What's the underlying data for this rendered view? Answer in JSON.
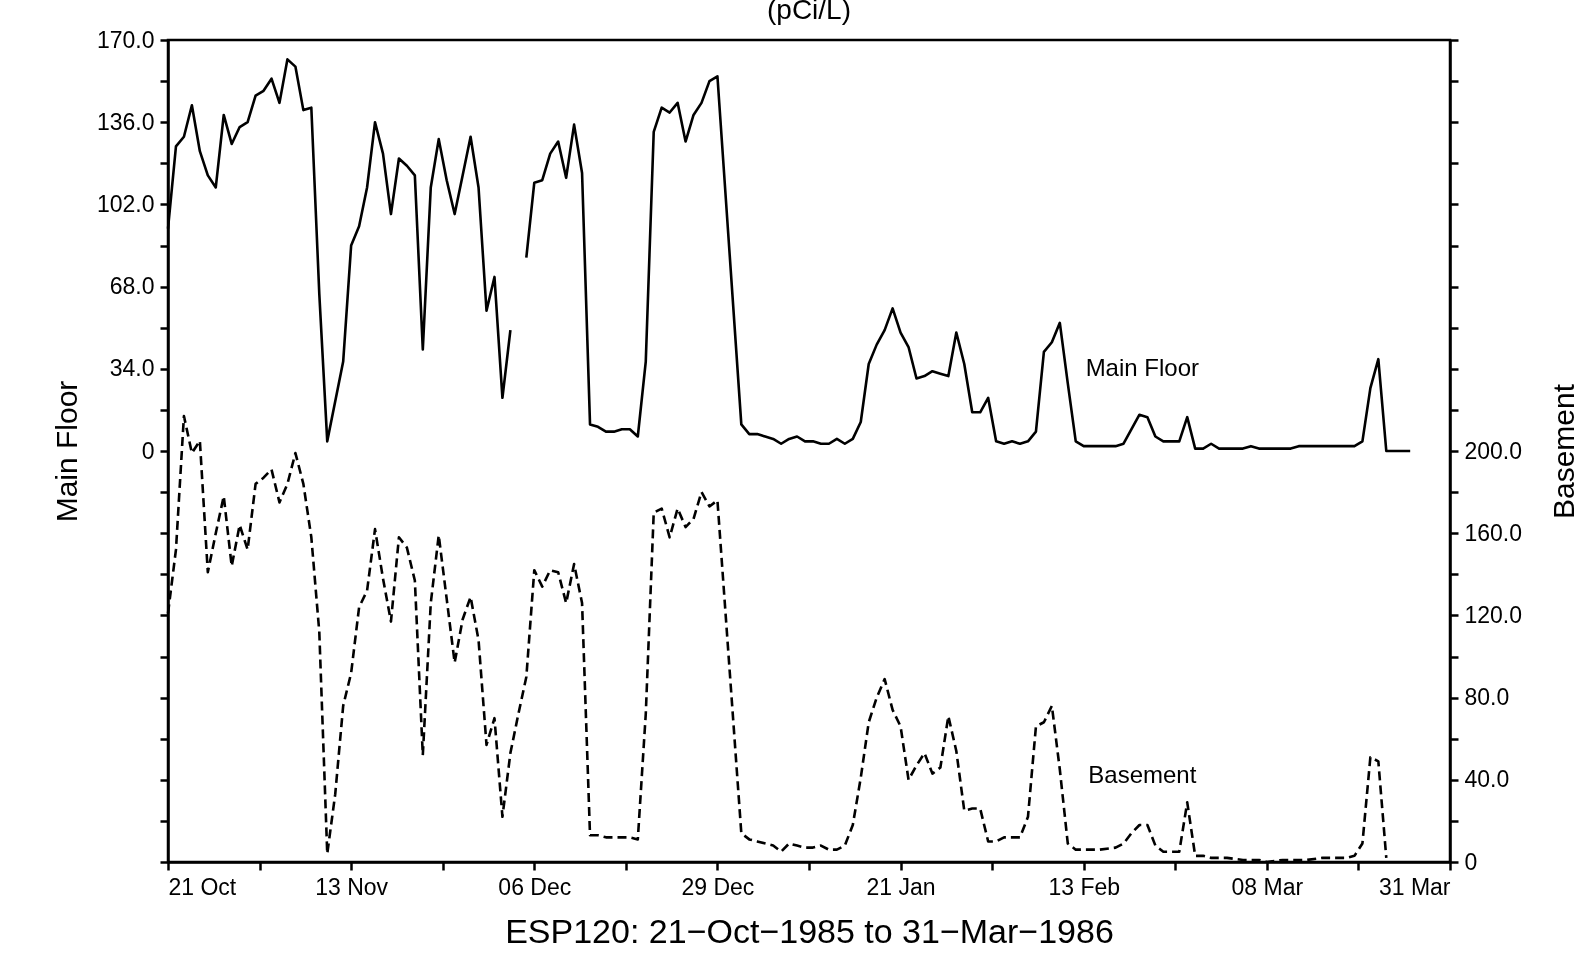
{
  "chart_data": {
    "type": "line",
    "title": "(pCi/L)",
    "xlabel": "ESP120:  21−Oct−1985 to 31−Mar−1986",
    "ylabel": "Main Floor",
    "y2label": "Basement",
    "xlim": [
      "1985-10-21",
      "1986-03-31"
    ],
    "xticks": [
      {
        "value": "1985-10-21",
        "label": "21 Oct"
      },
      {
        "value": "1985-11-01T12:00",
        "label": null
      },
      {
        "value": "1985-11-13",
        "label": "13 Nov"
      },
      {
        "value": "1985-11-24T12:00",
        "label": null
      },
      {
        "value": "1985-12-06",
        "label": "06 Dec"
      },
      {
        "value": "1985-12-17T12:00",
        "label": null
      },
      {
        "value": "1985-12-29",
        "label": "29 Dec"
      },
      {
        "value": "1986-01-09T12:00",
        "label": null
      },
      {
        "value": "1986-01-21",
        "label": "21 Jan"
      },
      {
        "value": "1986-02-01T12:00",
        "label": null
      },
      {
        "value": "1986-02-13",
        "label": "13 Feb"
      },
      {
        "value": "1986-02-24T12:00",
        "label": null
      },
      {
        "value": "1986-03-08",
        "label": "08 Mar"
      },
      {
        "value": "1986-03-19T12:00",
        "label": null
      },
      {
        "value": "1986-03-31",
        "label": "31 Mar"
      }
    ],
    "ylim": [
      -170,
      170
    ],
    "yticks": [
      {
        "value": -170,
        "label": null
      },
      {
        "value": -153,
        "label": null
      },
      {
        "value": -136,
        "label": null
      },
      {
        "value": -119,
        "label": null
      },
      {
        "value": -102,
        "label": null
      },
      {
        "value": -85,
        "label": null
      },
      {
        "value": -68,
        "label": null
      },
      {
        "value": -51,
        "label": null
      },
      {
        "value": -34,
        "label": null
      },
      {
        "value": -17,
        "label": null
      },
      0,
      {
        "value": 17,
        "label": null
      },
      {
        "value": 34,
        "label": "34.0"
      },
      {
        "value": 51,
        "label": null
      },
      {
        "value": 68,
        "label": "68.0"
      },
      {
        "value": 85,
        "label": null
      },
      {
        "value": 102,
        "label": "102.0"
      },
      {
        "value": 119,
        "label": null
      },
      {
        "value": 136,
        "label": "136.0"
      },
      {
        "value": 153,
        "label": null
      },
      {
        "value": 170,
        "label": "170.0"
      }
    ],
    "y2lim": [
      0,
      400
    ],
    "y2ticks": [
      0,
      {
        "value": 20,
        "label": null
      },
      {
        "value": 40,
        "label": "40.0"
      },
      {
        "value": 60,
        "label": null
      },
      {
        "value": 80,
        "label": "80.0"
      },
      {
        "value": 100,
        "label": null
      },
      {
        "value": 120,
        "label": "120.0"
      },
      {
        "value": 140,
        "label": null
      },
      {
        "value": 160,
        "label": "160.0"
      },
      {
        "value": 180,
        "label": null
      },
      {
        "value": 200,
        "label": "200.0"
      },
      {
        "value": 220,
        "label": null
      },
      {
        "value": 240,
        "label": null
      },
      {
        "value": 260,
        "label": null
      },
      {
        "value": 280,
        "label": null
      },
      {
        "value": 300,
        "label": null
      },
      {
        "value": 320,
        "label": null
      },
      {
        "value": 340,
        "label": null
      },
      {
        "value": 360,
        "label": null
      },
      {
        "value": 380,
        "label": null
      },
      {
        "value": 400,
        "label": null
      }
    ],
    "series": [
      {
        "name": "Main Floor",
        "color": "#000000",
        "line_style": "solid",
        "x": [
          "1985-10-21",
          "1985-10-22",
          "1985-10-23",
          "1985-10-24",
          "1985-10-25",
          "1985-10-26",
          "1985-10-27",
          "1985-10-28",
          "1985-10-29",
          "1985-10-30",
          "1985-10-31",
          "1985-11-01",
          "1985-11-02",
          "1985-11-03",
          "1985-11-04",
          "1985-11-05",
          "1985-11-06",
          "1985-11-07",
          "1985-11-08",
          "1985-11-09",
          "1985-11-10",
          "1985-11-12",
          "1985-11-13",
          "1985-11-14",
          "1985-11-15",
          "1985-11-16",
          "1985-11-17",
          "1985-11-18",
          "1985-11-19",
          "1985-11-20",
          "1985-11-21",
          "1985-11-22",
          "1985-11-23",
          "1985-11-24",
          "1985-11-25",
          "1985-11-26",
          "1985-11-27",
          "1985-11-28",
          "1985-11-29",
          "1985-11-30",
          "1985-12-01",
          "1985-12-02",
          "1985-12-03",
          "1985-12-04",
          "1985-12-05",
          "1985-12-06",
          "1985-12-07",
          "1985-12-08",
          "1985-12-09",
          "1985-12-10",
          "1985-12-11",
          "1985-12-12",
          "1985-12-13",
          "1985-12-14",
          "1985-12-15",
          "1985-12-16",
          "1985-12-17",
          "1985-12-18",
          "1985-12-19",
          "1985-12-20",
          "1985-12-21",
          "1985-12-22",
          "1985-12-23",
          "1985-12-24",
          "1985-12-25",
          "1985-12-26",
          "1985-12-27",
          "1985-12-28",
          "1985-12-29",
          "1986-01-01",
          "1986-01-02",
          "1986-01-03",
          "1986-01-04",
          "1986-01-05",
          "1986-01-06",
          "1986-01-07",
          "1986-01-08",
          "1986-01-09",
          "1986-01-10",
          "1986-01-11",
          "1986-01-12",
          "1986-01-13",
          "1986-01-14",
          "1986-01-15",
          "1986-01-16",
          "1986-01-17",
          "1986-01-18",
          "1986-01-19",
          "1986-01-20",
          "1986-01-21",
          "1986-01-22",
          "1986-01-23",
          "1986-01-24",
          "1986-01-25",
          "1986-01-26",
          "1986-01-27",
          "1986-01-28",
          "1986-01-29",
          "1986-01-30",
          "1986-01-31",
          "1986-02-01",
          "1986-02-02",
          "1986-02-03",
          "1986-02-04",
          "1986-02-05",
          "1986-02-06",
          "1986-02-07",
          "1986-02-08",
          "1986-02-09",
          "1986-02-10",
          "1986-02-11",
          "1986-02-12",
          "1986-02-13",
          "1986-02-14",
          "1986-02-15",
          "1986-02-17",
          "1986-02-18",
          "1986-02-19",
          "1986-02-20",
          "1986-02-21",
          "1986-02-22",
          "1986-02-23",
          "1986-02-25",
          "1986-02-26",
          "1986-02-27",
          "1986-02-28",
          "1986-03-01",
          "1986-03-02",
          "1986-03-03",
          "1986-03-05",
          "1986-03-06",
          "1986-03-07",
          "1986-03-08",
          "1986-03-10",
          "1986-03-11",
          "1986-03-12",
          "1986-03-13",
          "1986-03-15",
          "1986-03-16",
          "1986-03-17",
          "1986-03-18",
          "1986-03-19",
          "1986-03-20",
          "1986-03-21",
          "1986-03-22",
          "1986-03-23",
          "1986-03-24",
          "1986-03-26"
        ],
        "values": [
          92,
          126,
          130,
          143,
          124,
          114,
          109,
          139,
          127,
          134,
          136,
          147,
          149,
          154,
          144,
          162,
          159,
          141,
          142,
          65,
          4,
          37,
          85,
          93,
          109,
          136,
          123,
          98,
          121,
          118,
          114,
          42,
          109,
          129,
          112,
          98,
          114,
          130,
          109,
          58,
          72,
          22,
          50,
          null,
          80,
          111,
          112,
          123,
          128,
          113,
          135,
          115,
          11,
          10,
          8,
          8,
          9,
          9,
          6,
          37,
          132,
          142,
          140,
          144,
          128,
          139,
          144,
          153,
          155,
          11,
          7,
          7,
          6,
          5,
          3,
          5,
          6,
          4,
          4,
          3,
          3,
          5,
          3,
          5,
          12,
          36,
          44,
          50,
          59,
          49,
          43,
          30,
          31,
          33,
          32,
          31,
          49,
          36,
          16,
          16,
          22,
          4,
          3,
          4,
          3,
          4,
          8,
          41,
          45,
          53,
          28,
          4,
          2,
          2,
          2,
          2,
          3,
          9,
          15,
          14,
          6,
          4,
          4,
          14,
          1,
          1,
          3,
          1,
          1,
          1,
          2,
          1,
          1,
          1,
          1,
          2,
          2,
          2,
          2,
          2,
          2,
          2,
          4,
          26,
          38,
          0,
          0,
          0
        ]
      },
      {
        "name": "Basement",
        "color": "#000000",
        "line_style": "dashed",
        "axis": "y2",
        "x": [
          "1985-10-21",
          "1985-10-22",
          "1985-10-23",
          "1985-10-24",
          "1985-10-25",
          "1985-10-26",
          "1985-10-27",
          "1985-10-28",
          "1985-10-29",
          "1985-10-30",
          "1985-10-31",
          "1985-11-01",
          "1985-11-02",
          "1985-11-03",
          "1985-11-04",
          "1985-11-05",
          "1985-11-06",
          "1985-11-07",
          "1985-11-08",
          "1985-11-09",
          "1985-11-10",
          "1985-11-11",
          "1985-11-12",
          "1985-11-13",
          "1985-11-14",
          "1985-11-15",
          "1985-11-16",
          "1985-11-17",
          "1985-11-18",
          "1985-11-19",
          "1985-11-20",
          "1985-11-21",
          "1985-11-22",
          "1985-11-23",
          "1985-11-24",
          "1985-11-25",
          "1985-11-26",
          "1985-11-27",
          "1985-11-28",
          "1985-11-29",
          "1985-11-30",
          "1985-12-01",
          "1985-12-02",
          "1985-12-03",
          "1985-12-04",
          "1985-12-05",
          "1985-12-06",
          "1985-12-07",
          "1985-12-08",
          "1985-12-09",
          "1985-12-10",
          "1985-12-11",
          "1985-12-12",
          "1985-12-13",
          "1985-12-14",
          "1985-12-15",
          "1985-12-16",
          "1985-12-17",
          "1985-12-18",
          "1985-12-19",
          "1985-12-20",
          "1985-12-21",
          "1985-12-22",
          "1985-12-23",
          "1985-12-24",
          "1985-12-25",
          "1985-12-26",
          "1985-12-27",
          "1985-12-28",
          "1985-12-29",
          "1986-01-01",
          "1986-01-02",
          "1986-01-03",
          "1986-01-05",
          "1986-01-06",
          "1986-01-07",
          "1986-01-08",
          "1986-01-09",
          "1986-01-10",
          "1986-01-11",
          "1986-01-12",
          "1986-01-13",
          "1986-01-14",
          "1986-01-15",
          "1986-01-16",
          "1986-01-17",
          "1986-01-18",
          "1986-01-19",
          "1986-01-20",
          "1986-01-21",
          "1986-01-22",
          "1986-01-23",
          "1986-01-24",
          "1986-01-25",
          "1986-01-26",
          "1986-01-27",
          "1986-01-28",
          "1986-01-29",
          "1986-01-30",
          "1986-01-31",
          "1986-02-01",
          "1986-02-02",
          "1986-02-03",
          "1986-02-04",
          "1986-02-05",
          "1986-02-06",
          "1986-02-07",
          "1986-02-08",
          "1986-02-09",
          "1986-02-10",
          "1986-02-11",
          "1986-02-12",
          "1986-02-14",
          "1986-02-15",
          "1986-02-17",
          "1986-02-18",
          "1986-02-19",
          "1986-02-20",
          "1986-02-21",
          "1986-02-22",
          "1986-02-23",
          "1986-02-25",
          "1986-02-26",
          "1986-02-27",
          "1986-02-28",
          "1986-03-01",
          "1986-03-02",
          "1986-03-03",
          "1986-03-05",
          "1986-03-06",
          "1986-03-07",
          "1986-03-08",
          "1986-03-10",
          "1986-03-11",
          "1986-03-12",
          "1986-03-13",
          "1986-03-15",
          "1986-03-16",
          "1986-03-17",
          "1986-03-18",
          "1986-03-19",
          "1986-03-20",
          "1986-03-21",
          "1986-03-22",
          "1986-03-23"
        ],
        "values": [
          121,
          152,
          217,
          199,
          205,
          141,
          160,
          178,
          144,
          164,
          152,
          184,
          187,
          191,
          175,
          184,
          199,
          184,
          158,
          112,
          4,
          33,
          76,
          92,
          124,
          132,
          162,
          138,
          117,
          158,
          153,
          137,
          52,
          126,
          159,
          128,
          97,
          118,
          129,
          108,
          57,
          70,
          22,
          53,
          72,
          90,
          142,
          134,
          142,
          141,
          126,
          145,
          126,
          13,
          13,
          12,
          12,
          12,
          12,
          11,
          72,
          170,
          172,
          158,
          172,
          163,
          167,
          180,
          173,
          176,
          14,
          11,
          10,
          8,
          5,
          9,
          8,
          7,
          7,
          8,
          6,
          6,
          8,
          18,
          41,
          68,
          80,
          89,
          74,
          66,
          40,
          47,
          53,
          43,
          46,
          71,
          54,
          25,
          26,
          26,
          10,
          10,
          12,
          12,
          12,
          22,
          66,
          68,
          76,
          45,
          9,
          6,
          6,
          6,
          7,
          9,
          14,
          18,
          18,
          8,
          5,
          5,
          29,
          3,
          3,
          2,
          2,
          2,
          1,
          1,
          1,
          0,
          1,
          1,
          1,
          1,
          2,
          2,
          2,
          2,
          3,
          9,
          51,
          49,
          2
        ]
      }
    ]
  }
}
